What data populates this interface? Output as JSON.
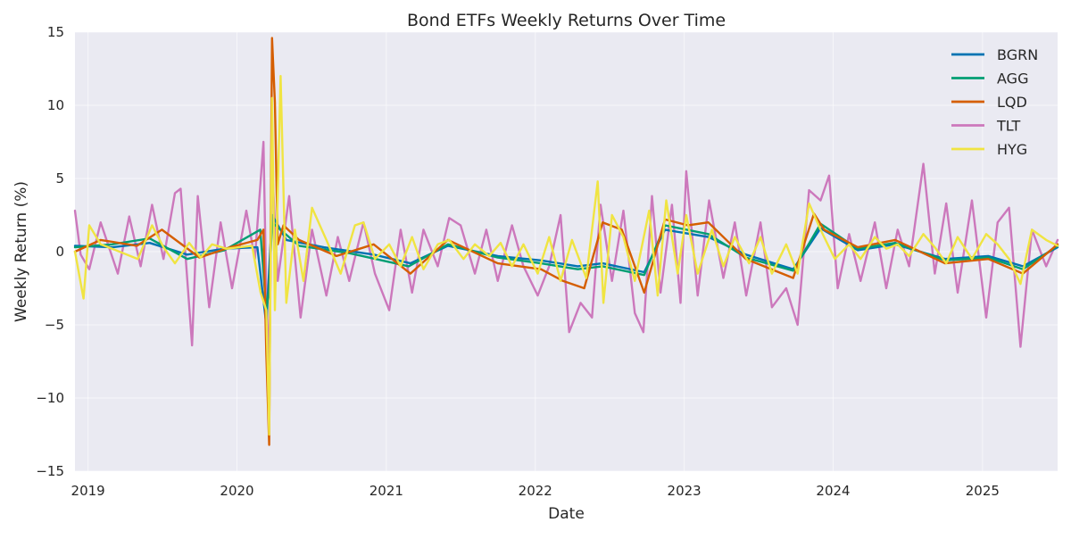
{
  "chart_data": {
    "type": "line",
    "title": "Bond ETFs Weekly Returns Over Time",
    "xlabel": "Date",
    "ylabel": "Weekly Return (%)",
    "xlim": [
      "2018-11-30",
      "2025-07-04"
    ],
    "ylim": [
      -15,
      15
    ],
    "x_tick_labels": [
      "2019",
      "2020",
      "2021",
      "2022",
      "2023",
      "2024",
      "2025"
    ],
    "x_tick_dates": [
      "2019-01-01",
      "2020-01-01",
      "2021-01-01",
      "2022-01-01",
      "2023-01-01",
      "2024-01-01",
      "2025-01-01"
    ],
    "y_ticks": [
      -15,
      -10,
      -5,
      0,
      5,
      10,
      15
    ],
    "y_tick_labels": [
      "−15",
      "−10",
      "−5",
      "0",
      "5",
      "10",
      "15"
    ],
    "grid": true,
    "legend_position": "top-right",
    "background_color": "#eaeaf2",
    "series": [
      {
        "name": "BGRN",
        "color": "#0173b2",
        "points": [
          [
            "2018-11-30",
            0.4
          ],
          [
            "2019-03-01",
            0.3
          ],
          [
            "2019-06-01",
            0.6
          ],
          [
            "2019-09-01",
            -0.2
          ],
          [
            "2019-12-01",
            0.2
          ],
          [
            "2020-02-20",
            0.3
          ],
          [
            "2020-03-13",
            -5.0
          ],
          [
            "2020-03-27",
            2.5
          ],
          [
            "2020-05-01",
            0.8
          ],
          [
            "2020-08-01",
            0.3
          ],
          [
            "2020-12-01",
            -0.2
          ],
          [
            "2021-03-01",
            -0.8
          ],
          [
            "2021-06-01",
            0.4
          ],
          [
            "2021-10-01",
            -0.3
          ],
          [
            "2022-01-15",
            -0.6
          ],
          [
            "2022-04-15",
            -1.0
          ],
          [
            "2022-06-15",
            -0.8
          ],
          [
            "2022-09-25",
            -1.4
          ],
          [
            "2022-11-15",
            1.5
          ],
          [
            "2023-03-01",
            1.0
          ],
          [
            "2023-06-01",
            -0.2
          ],
          [
            "2023-09-25",
            -1.2
          ],
          [
            "2023-12-01",
            1.6
          ],
          [
            "2024-03-01",
            0.1
          ],
          [
            "2024-06-01",
            0.5
          ],
          [
            "2024-10-01",
            -0.5
          ],
          [
            "2025-01-15",
            -0.3
          ],
          [
            "2025-04-10",
            -1.0
          ],
          [
            "2025-07-04",
            0.3
          ]
        ]
      },
      {
        "name": "AGG",
        "color": "#029e73",
        "points": [
          [
            "2018-11-30",
            0.3
          ],
          [
            "2019-03-01",
            0.5
          ],
          [
            "2019-06-01",
            0.9
          ],
          [
            "2019-09-01",
            -0.5
          ],
          [
            "2019-12-01",
            0.1
          ],
          [
            "2020-02-27",
            1.5
          ],
          [
            "2020-03-13",
            -4.0
          ],
          [
            "2020-03-20",
            -2.5
          ],
          [
            "2020-03-27",
            2.0
          ],
          [
            "2020-06-01",
            0.4
          ],
          [
            "2020-10-01",
            -0.1
          ],
          [
            "2021-02-25",
            -1.0
          ],
          [
            "2021-06-01",
            0.5
          ],
          [
            "2021-10-01",
            -0.4
          ],
          [
            "2022-01-15",
            -0.8
          ],
          [
            "2022-04-15",
            -1.2
          ],
          [
            "2022-06-15",
            -1.0
          ],
          [
            "2022-09-25",
            -1.6
          ],
          [
            "2022-11-15",
            1.8
          ],
          [
            "2023-03-01",
            1.2
          ],
          [
            "2023-06-01",
            -0.4
          ],
          [
            "2023-09-25",
            -1.3
          ],
          [
            "2023-12-01",
            1.9
          ],
          [
            "2024-03-01",
            0.2
          ],
          [
            "2024-06-01",
            0.6
          ],
          [
            "2024-10-01",
            -0.6
          ],
          [
            "2025-01-15",
            -0.4
          ],
          [
            "2025-04-10",
            -1.2
          ],
          [
            "2025-07-04",
            0.4
          ]
        ]
      },
      {
        "name": "LQD",
        "color": "#d55e00",
        "points": [
          [
            "2018-11-30",
            0.0
          ],
          [
            "2019-02-01",
            0.8
          ],
          [
            "2019-05-01",
            0.4
          ],
          [
            "2019-07-01",
            1.5
          ],
          [
            "2019-10-01",
            -0.4
          ],
          [
            "2019-12-15",
            0.3
          ],
          [
            "2020-02-20",
            0.8
          ],
          [
            "2020-03-06",
            1.5
          ],
          [
            "2020-03-13",
            -7.0
          ],
          [
            "2020-03-20",
            -13.2
          ],
          [
            "2020-03-27",
            14.6
          ],
          [
            "2020-04-03",
            10.2
          ],
          [
            "2020-04-10",
            0.5
          ],
          [
            "2020-04-24",
            1.8
          ],
          [
            "2020-06-01",
            0.8
          ],
          [
            "2020-09-01",
            -0.3
          ],
          [
            "2020-12-01",
            0.5
          ],
          [
            "2021-03-01",
            -1.5
          ],
          [
            "2021-06-01",
            0.8
          ],
          [
            "2021-10-01",
            -0.8
          ],
          [
            "2022-01-15",
            -1.2
          ],
          [
            "2022-03-10",
            -2.0
          ],
          [
            "2022-05-01",
            -2.5
          ],
          [
            "2022-06-15",
            2.0
          ],
          [
            "2022-08-01",
            1.5
          ],
          [
            "2022-09-25",
            -2.8
          ],
          [
            "2022-11-15",
            2.2
          ],
          [
            "2023-01-10",
            1.8
          ],
          [
            "2023-03-01",
            2.0
          ],
          [
            "2023-06-01",
            -0.5
          ],
          [
            "2023-09-25",
            -1.8
          ],
          [
            "2023-11-15",
            2.6
          ],
          [
            "2023-12-10",
            1.5
          ],
          [
            "2024-03-01",
            0.3
          ],
          [
            "2024-06-01",
            0.8
          ],
          [
            "2024-10-01",
            -0.8
          ],
          [
            "2025-01-15",
            -0.5
          ],
          [
            "2025-04-10",
            -1.5
          ],
          [
            "2025-07-04",
            0.5
          ]
        ]
      },
      {
        "name": "TLT",
        "color": "#cc78bc",
        "points": [
          [
            "2018-11-30",
            2.8
          ],
          [
            "2018-12-14",
            -0.2
          ],
          [
            "2019-01-04",
            -1.2
          ],
          [
            "2019-02-01",
            2.0
          ],
          [
            "2019-03-15",
            -1.5
          ],
          [
            "2019-04-12",
            2.4
          ],
          [
            "2019-05-10",
            -1.0
          ],
          [
            "2019-06-07",
            3.2
          ],
          [
            "2019-07-05",
            -0.5
          ],
          [
            "2019-08-02",
            4.0
          ],
          [
            "2019-08-16",
            4.3
          ],
          [
            "2019-09-13",
            -6.4
          ],
          [
            "2019-09-27",
            3.8
          ],
          [
            "2019-10-25",
            -3.8
          ],
          [
            "2019-11-22",
            2.0
          ],
          [
            "2019-12-20",
            -2.5
          ],
          [
            "2020-01-24",
            2.8
          ],
          [
            "2020-02-14",
            -0.5
          ],
          [
            "2020-03-06",
            7.5
          ],
          [
            "2020-03-13",
            -3.0
          ],
          [
            "2020-03-20",
            -8.0
          ],
          [
            "2020-03-27",
            6.0
          ],
          [
            "2020-04-10",
            -2.0
          ],
          [
            "2020-05-08",
            3.8
          ],
          [
            "2020-06-05",
            -4.5
          ],
          [
            "2020-07-03",
            1.5
          ],
          [
            "2020-08-07",
            -3.0
          ],
          [
            "2020-09-04",
            1.0
          ],
          [
            "2020-10-02",
            -2.0
          ],
          [
            "2020-11-06",
            2.0
          ],
          [
            "2020-12-04",
            -1.5
          ],
          [
            "2021-01-08",
            -4.0
          ],
          [
            "2021-02-05",
            1.5
          ],
          [
            "2021-03-05",
            -2.8
          ],
          [
            "2021-04-02",
            1.5
          ],
          [
            "2021-05-07",
            -1.0
          ],
          [
            "2021-06-04",
            2.3
          ],
          [
            "2021-07-02",
            1.8
          ],
          [
            "2021-08-06",
            -1.5
          ],
          [
            "2021-09-03",
            1.5
          ],
          [
            "2021-10-01",
            -2.0
          ],
          [
            "2021-11-05",
            1.8
          ],
          [
            "2021-12-03",
            -1.0
          ],
          [
            "2022-01-07",
            -3.0
          ],
          [
            "2022-02-04",
            -1.0
          ],
          [
            "2022-03-04",
            2.5
          ],
          [
            "2022-03-25",
            -5.5
          ],
          [
            "2022-04-22",
            -3.5
          ],
          [
            "2022-05-20",
            -4.5
          ],
          [
            "2022-06-10",
            3.2
          ],
          [
            "2022-07-08",
            -2.0
          ],
          [
            "2022-08-05",
            2.8
          ],
          [
            "2022-09-02",
            -4.2
          ],
          [
            "2022-09-23",
            -5.5
          ],
          [
            "2022-10-14",
            3.8
          ],
          [
            "2022-11-04",
            -2.8
          ],
          [
            "2022-12-02",
            3.2
          ],
          [
            "2022-12-23",
            -3.5
          ],
          [
            "2023-01-06",
            5.5
          ],
          [
            "2023-02-03",
            -3.0
          ],
          [
            "2023-03-03",
            3.5
          ],
          [
            "2023-04-07",
            -1.8
          ],
          [
            "2023-05-05",
            2.0
          ],
          [
            "2023-06-02",
            -3.0
          ],
          [
            "2023-07-07",
            2.0
          ],
          [
            "2023-08-04",
            -3.8
          ],
          [
            "2023-09-08",
            -2.5
          ],
          [
            "2023-10-06",
            -5.0
          ],
          [
            "2023-11-03",
            4.2
          ],
          [
            "2023-12-01",
            3.5
          ],
          [
            "2023-12-22",
            5.2
          ],
          [
            "2024-01-12",
            -2.5
          ],
          [
            "2024-02-09",
            1.2
          ],
          [
            "2024-03-08",
            -2.0
          ],
          [
            "2024-04-12",
            2.0
          ],
          [
            "2024-05-10",
            -2.5
          ],
          [
            "2024-06-07",
            1.5
          ],
          [
            "2024-07-05",
            -1.0
          ],
          [
            "2024-08-09",
            6.0
          ],
          [
            "2024-09-06",
            -1.5
          ],
          [
            "2024-10-04",
            3.3
          ],
          [
            "2024-11-01",
            -2.8
          ],
          [
            "2024-12-06",
            3.5
          ],
          [
            "2025-01-10",
            -4.5
          ],
          [
            "2025-02-07",
            2.0
          ],
          [
            "2025-03-07",
            3.0
          ],
          [
            "2025-04-04",
            -6.5
          ],
          [
            "2025-05-02",
            1.5
          ],
          [
            "2025-06-06",
            -1.0
          ],
          [
            "2025-07-04",
            0.8
          ]
        ]
      },
      {
        "name": "HYG",
        "color": "#f0e442",
        "points": [
          [
            "2018-11-30",
            0.0
          ],
          [
            "2018-12-21",
            -3.2
          ],
          [
            "2019-01-04",
            1.8
          ],
          [
            "2019-02-01",
            0.5
          ],
          [
            "2019-03-01",
            0.2
          ],
          [
            "2019-05-03",
            -0.5
          ],
          [
            "2019-06-07",
            1.8
          ],
          [
            "2019-07-05",
            0.3
          ],
          [
            "2019-08-02",
            -0.8
          ],
          [
            "2019-09-06",
            0.6
          ],
          [
            "2019-10-04",
            -0.4
          ],
          [
            "2019-11-01",
            0.5
          ],
          [
            "2019-12-06",
            0.2
          ],
          [
            "2020-02-07",
            0.4
          ],
          [
            "2020-02-28",
            -2.8
          ],
          [
            "2020-03-13",
            -4.0
          ],
          [
            "2020-03-20",
            -12.5
          ],
          [
            "2020-03-27",
            10.5
          ],
          [
            "2020-04-03",
            -4.0
          ],
          [
            "2020-04-17",
            12.0
          ],
          [
            "2020-05-01",
            -3.5
          ],
          [
            "2020-05-22",
            1.5
          ],
          [
            "2020-06-12",
            -2.0
          ],
          [
            "2020-07-03",
            3.0
          ],
          [
            "2020-08-07",
            0.8
          ],
          [
            "2020-09-11",
            -1.5
          ],
          [
            "2020-10-16",
            1.8
          ],
          [
            "2020-11-06",
            2.0
          ],
          [
            "2020-12-04",
            -0.5
          ],
          [
            "2021-01-08",
            0.5
          ],
          [
            "2021-02-05",
            -1.0
          ],
          [
            "2021-03-05",
            1.0
          ],
          [
            "2021-04-02",
            -1.2
          ],
          [
            "2021-05-07",
            0.5
          ],
          [
            "2021-06-04",
            0.8
          ],
          [
            "2021-07-09",
            -0.5
          ],
          [
            "2021-08-06",
            0.5
          ],
          [
            "2021-09-10",
            -0.3
          ],
          [
            "2021-10-08",
            0.6
          ],
          [
            "2021-11-05",
            -1.0
          ],
          [
            "2021-12-03",
            0.5
          ],
          [
            "2022-01-07",
            -1.5
          ],
          [
            "2022-02-04",
            1.0
          ],
          [
            "2022-03-04",
            -2.0
          ],
          [
            "2022-04-01",
            0.8
          ],
          [
            "2022-05-06",
            -1.8
          ],
          [
            "2022-06-03",
            4.8
          ],
          [
            "2022-06-17",
            -3.5
          ],
          [
            "2022-07-08",
            2.5
          ],
          [
            "2022-08-05",
            1.0
          ],
          [
            "2022-09-02",
            -2.0
          ],
          [
            "2022-10-07",
            2.8
          ],
          [
            "2022-10-28",
            -3.0
          ],
          [
            "2022-11-18",
            3.5
          ],
          [
            "2022-12-16",
            -1.5
          ],
          [
            "2023-01-06",
            2.5
          ],
          [
            "2023-02-03",
            -1.5
          ],
          [
            "2023-03-10",
            1.5
          ],
          [
            "2023-04-07",
            -1.0
          ],
          [
            "2023-05-05",
            1.0
          ],
          [
            "2023-06-09",
            -0.8
          ],
          [
            "2023-07-07",
            1.0
          ],
          [
            "2023-08-04",
            -1.5
          ],
          [
            "2023-09-08",
            0.5
          ],
          [
            "2023-10-06",
            -1.5
          ],
          [
            "2023-11-03",
            3.3
          ],
          [
            "2023-12-01",
            1.5
          ],
          [
            "2024-01-05",
            -0.5
          ],
          [
            "2024-02-09",
            0.5
          ],
          [
            "2024-03-08",
            -0.5
          ],
          [
            "2024-04-12",
            1.0
          ],
          [
            "2024-05-10",
            0.2
          ],
          [
            "2024-06-07",
            0.5
          ],
          [
            "2024-07-05",
            -0.3
          ],
          [
            "2024-08-09",
            1.2
          ],
          [
            "2024-09-06",
            0.3
          ],
          [
            "2024-10-04",
            -0.8
          ],
          [
            "2024-11-01",
            1.0
          ],
          [
            "2024-12-06",
            -0.5
          ],
          [
            "2025-01-10",
            1.2
          ],
          [
            "2025-02-07",
            0.5
          ],
          [
            "2025-03-07",
            -0.5
          ],
          [
            "2025-04-04",
            -2.2
          ],
          [
            "2025-05-02",
            1.5
          ],
          [
            "2025-06-06",
            0.8
          ],
          [
            "2025-07-04",
            0.4
          ]
        ]
      }
    ]
  }
}
